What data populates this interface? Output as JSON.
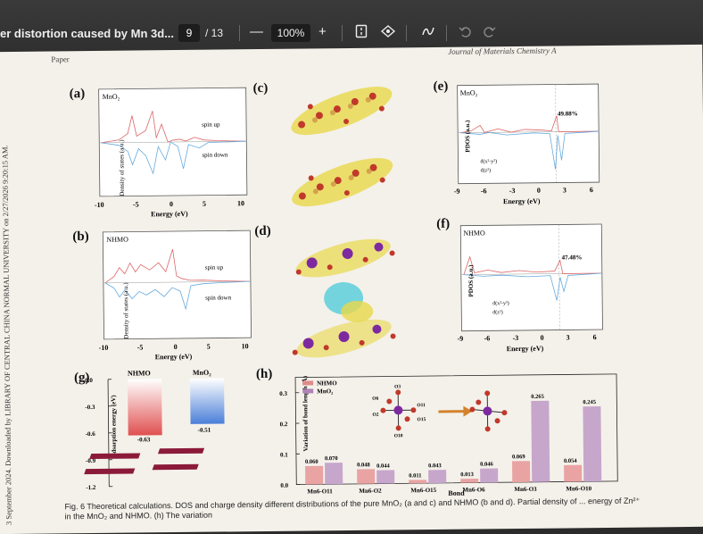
{
  "toolbar": {
    "doc_title": "er distortion caused by Mn 3d...",
    "page_current": "9",
    "page_total": "/ 13",
    "zoom_out": "—",
    "zoom_level": "100%",
    "zoom_in": "+"
  },
  "page": {
    "header_left": "Paper",
    "header_right": "Journal of Materials Chemistry A",
    "sidebar_text": "3 September 2024. Downloaded by LIBRARY OF CENTRAL CHINA NORMAL UNIVERSITY on 2/27/2026 9:20:15 AM.",
    "caption": "Fig. 6 Theoretical calculations. DOS and charge density different distributions of the pure MnO₂ (a and c) and NHMO (b and d). Partial density of ... energy of Zn²⁺ in the MnO₂ and NHMO. (h) The variation"
  },
  "panels": {
    "a": {
      "letter": "(a)",
      "label": "MnO₂",
      "ylabel": "Density of states (a.u.)",
      "xlabel": "Energy (eV)",
      "ticks": [
        "-10",
        "-5",
        "0",
        "5",
        "10"
      ],
      "spin_up": "spin up",
      "spin_down": "spin down"
    },
    "b": {
      "letter": "(b)",
      "label": "NHMO",
      "ylabel": "Density of states (a.u.)",
      "xlabel": "Energy (eV)",
      "ticks": [
        "-10",
        "-5",
        "0",
        "5",
        "10"
      ],
      "spin_up": "spin up",
      "spin_down": "spin down"
    },
    "c": {
      "letter": "(c)"
    },
    "d": {
      "letter": "(d)"
    },
    "e": {
      "letter": "(e)",
      "label": "MnO₂",
      "ylabel": "PDOS (a.u.)",
      "xlabel": "Energy (eV)",
      "ticks": [
        "-9",
        "-6",
        "-3",
        "0",
        "3",
        "6"
      ],
      "percent": "49.88%",
      "legend1": "d(x²-y²)",
      "legend2": "d(z²)"
    },
    "f": {
      "letter": "(f)",
      "label": "NHMO",
      "ylabel": "PDOS (a.u.)",
      "xlabel": "Energy (eV)",
      "ticks": [
        "-9",
        "-6",
        "-3",
        "0",
        "3",
        "6"
      ],
      "percent": "47.48%",
      "legend1": "d(x²-y²)",
      "legend2": "d(z²)"
    },
    "g": {
      "letter": "(g)",
      "ylabel": "Adsorption energy (eV)",
      "col1": "NHMO",
      "col2": "MnO₂",
      "v1": "-0.63",
      "v2": "-0.51",
      "ticks": [
        "0.0",
        "-0.3",
        "-0.6",
        "-0.9",
        "-1.2"
      ]
    },
    "h": {
      "letter": "(h)",
      "ylabel": "Variation of bond length (Å)",
      "xlabel": "Bond",
      "legend1": "NHMO",
      "legend2": "MnO₂",
      "ticks": [
        "0.0",
        "0.1",
        "0.2",
        "0.3"
      ],
      "atoms": [
        "O3",
        "O6",
        "O11",
        "O2",
        "O15",
        "O10"
      ]
    }
  },
  "chart_data": [
    {
      "type": "bar",
      "title": "",
      "ylabel": "Adsorption energy (eV)",
      "categories": [
        "NHMO",
        "MnO₂"
      ],
      "values": [
        -0.63,
        -0.51
      ],
      "ylim": [
        -1.2,
        0.0
      ]
    },
    {
      "type": "bar",
      "ylabel": "Variation of bond length (Å)",
      "xlabel": "Bond",
      "categories": [
        "Mn6-O11",
        "Mn6-O2",
        "Mn6-O15",
        "Mn6-O6",
        "Mn6-O3",
        "Mn6-O10"
      ],
      "series": [
        {
          "name": "NHMO",
          "values": [
            0.06,
            0.048,
            0.011,
            0.013,
            0.069,
            0.054
          ]
        },
        {
          "name": "MnO₂",
          "values": [
            0.07,
            0.044,
            0.043,
            0.046,
            0.265,
            0.245
          ]
        }
      ],
      "ylim": [
        0.0,
        0.35
      ]
    }
  ]
}
